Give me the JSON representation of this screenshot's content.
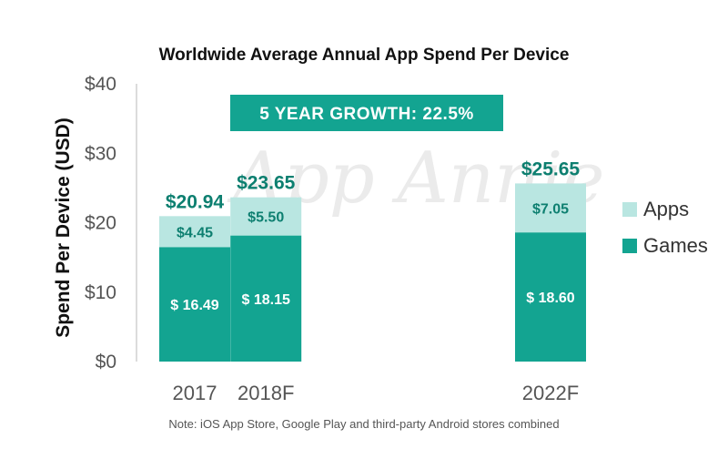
{
  "chart_data": {
    "type": "bar",
    "stacked": true,
    "title": "Worldwide Average Annual App Spend Per Device",
    "ylabel": "Spend Per Device (USD)",
    "xlabel": "",
    "ylim": [
      0,
      40
    ],
    "yticks": [
      "$0",
      "$10",
      "$20",
      "$30",
      "$40"
    ],
    "ytick_values": [
      0,
      10,
      20,
      30,
      40
    ],
    "categories": [
      "2017",
      "2018F",
      "2022F"
    ],
    "x_years": [
      2017,
      2018,
      2022
    ],
    "series": [
      {
        "name": "Games",
        "values": [
          16.49,
          18.15,
          18.6
        ],
        "labels": [
          "$ 16.49",
          "$ 18.15",
          "$ 18.60"
        ],
        "color": "#13a491",
        "label_color": "#ffffff"
      },
      {
        "name": "Apps",
        "values": [
          4.45,
          5.5,
          7.05
        ],
        "labels": [
          "$4.45",
          "$5.50",
          "$7.05"
        ],
        "color": "#b9e6e1",
        "label_color": "#0d7f70"
      }
    ],
    "totals": [
      "$20.94",
      "$23.65",
      "$25.65"
    ],
    "total_color": "#0d7f70",
    "growth_banner": "5 YEAR GROWTH: 22.5%",
    "growth_color": "#13a491",
    "legend": [
      "Apps",
      "Games"
    ],
    "legend_position": "right",
    "watermark": "App Annie",
    "note": "Note: iOS App Store, Google Play and third-party Android stores combined",
    "grid": false
  }
}
